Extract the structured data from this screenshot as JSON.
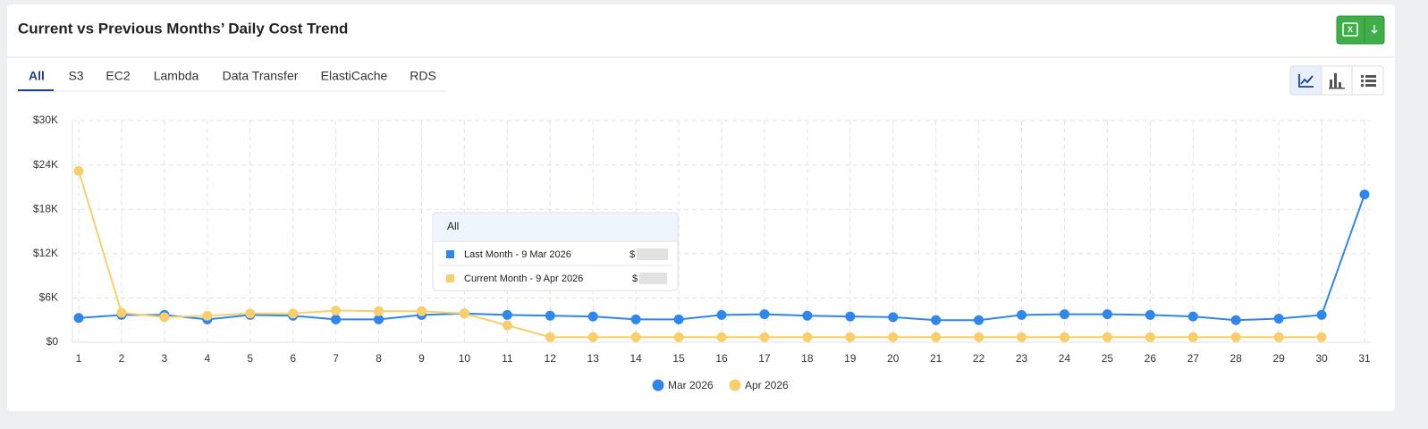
{
  "header": {
    "title": "Current vs Previous Months’ Daily Cost Trend"
  },
  "tabs": [
    "All",
    "S3",
    "EC2",
    "Lambda",
    "Data Transfer",
    "ElastiCache",
    "RDS"
  ],
  "tooltip": {
    "title": "All",
    "rows": [
      {
        "label": "Last Month - 9 Mar 2026",
        "value": "$"
      },
      {
        "label": "Current Month - 9 Apr 2026",
        "value": "$"
      }
    ]
  },
  "chart_data": {
    "type": "line",
    "categories": [
      "1",
      "2",
      "3",
      "4",
      "5",
      "6",
      "7",
      "8",
      "9",
      "10",
      "11",
      "12",
      "13",
      "14",
      "15",
      "16",
      "17",
      "18",
      "19",
      "20",
      "21",
      "22",
      "23",
      "24",
      "25",
      "26",
      "27",
      "28",
      "29",
      "30",
      "31"
    ],
    "series": [
      {
        "name": "Mar 2026",
        "color": "#2f86eb",
        "values": [
          3300,
          3700,
          3700,
          3100,
          3700,
          3600,
          3100,
          3100,
          3700,
          3900,
          3700,
          3600,
          3500,
          3100,
          3100,
          3700,
          3800,
          3600,
          3500,
          3400,
          3000,
          3000,
          3700,
          3800,
          3800,
          3700,
          3500,
          3000,
          3200,
          3700,
          20000
        ]
      },
      {
        "name": "Apr 2026",
        "color": "#f9cf6b",
        "values": [
          23200,
          4000,
          3400,
          3600,
          3900,
          3900,
          4300,
          4200,
          4200,
          3900,
          2300,
          700,
          700,
          700,
          700,
          700,
          700,
          700,
          700,
          700,
          700,
          700,
          700,
          700,
          700,
          700,
          700,
          700,
          700,
          700,
          null
        ]
      }
    ],
    "ylim": [
      0,
      30000
    ],
    "yticks": [
      {
        "value": 0,
        "label": "$0"
      },
      {
        "value": 6000,
        "label": "$6K"
      },
      {
        "value": 12000,
        "label": "$12K"
      },
      {
        "value": 18000,
        "label": "$18K"
      },
      {
        "value": 24000,
        "label": "$24K"
      },
      {
        "value": 30000,
        "label": "$30K"
      }
    ],
    "grid": true,
    "legend": "bottom"
  }
}
